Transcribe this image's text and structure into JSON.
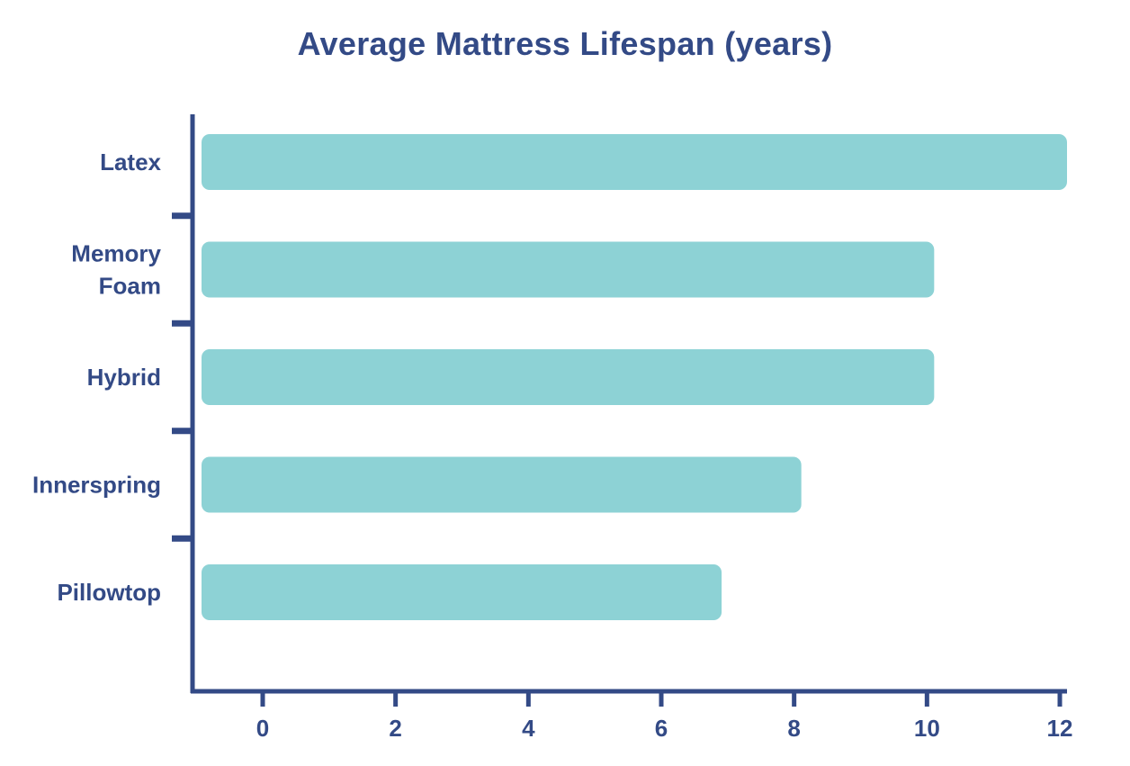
{
  "colors": {
    "text": "#334a86",
    "axis": "#334a86",
    "bar": "#8dd2d5"
  },
  "chart_data": {
    "type": "bar",
    "orientation": "horizontal",
    "title": "Average Mattress Lifespan (years)",
    "xlabel": "",
    "ylabel": "",
    "categories": [
      [
        "Latex"
      ],
      [
        "Memory",
        "Foam"
      ],
      [
        "Hybrid"
      ],
      [
        "Innerspring"
      ],
      [
        "Pillowtop"
      ]
    ],
    "values": [
      12,
      10,
      10,
      8,
      6.8
    ],
    "xlim": [
      0,
      12
    ],
    "xticks": [
      "0",
      "2",
      "4",
      "6",
      "8",
      "10",
      "12"
    ],
    "grid": false,
    "legend": "none"
  }
}
